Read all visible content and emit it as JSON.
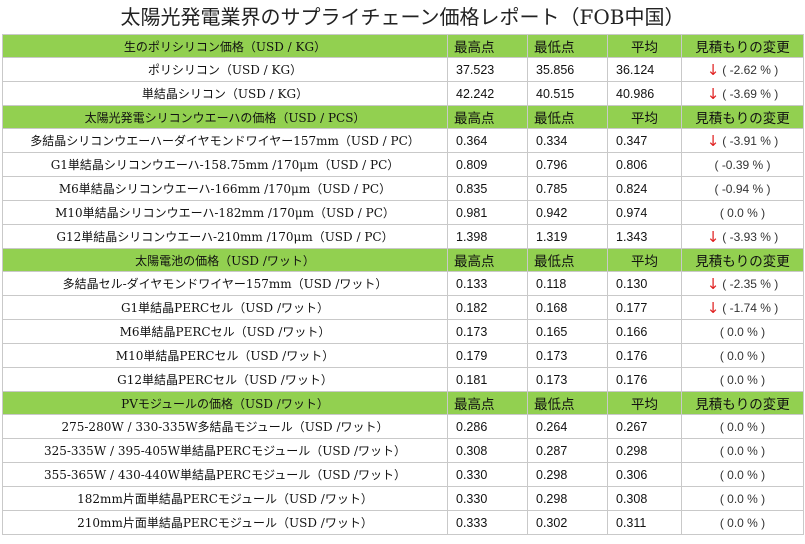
{
  "title": "太陽光発電業界のサプライチェーン価格レポート（FOB中国）",
  "columns": {
    "high": "最高点",
    "low": "最低点",
    "avg": "平均",
    "change": "見積もりの変更"
  },
  "sections": [
    {
      "header": "生のポリシリコン価格（USD / KG）",
      "rows": [
        {
          "name": "ポリシリコン（USD / KG）",
          "high": "37.523",
          "low": "35.856",
          "avg": "36.124",
          "arrow": "down",
          "change": "( -2.62 % )"
        },
        {
          "name": "単結晶シリコン（USD / KG）",
          "high": "42.242",
          "low": "40.515",
          "avg": "40.986",
          "arrow": "down",
          "change": "( -3.69 % )"
        }
      ]
    },
    {
      "header": "太陽光発電シリコンウエーハの価格（USD / PCS）",
      "rows": [
        {
          "name": "多結晶シリコンウエーハーダイヤモンドワイヤー157mm（USD / PC）",
          "high": "0.364",
          "low": "0.334",
          "avg": "0.347",
          "arrow": "down",
          "change": "( -3.91 % )"
        },
        {
          "name": "G1単結晶シリコンウエーハ-158.75mm /170μm（USD / PC）",
          "high": "0.809",
          "low": "0.796",
          "avg": "0.806",
          "arrow": "",
          "change": "( -0.39 % )"
        },
        {
          "name": "M6単結晶シリコンウエーハ-166mm /170μm（USD / PC）",
          "high": "0.835",
          "low": "0.785",
          "avg": "0.824",
          "arrow": "",
          "change": "( -0.94 % )"
        },
        {
          "name": "M10単結晶シリコンウエーハ-182mm /170μm（USD / PC）",
          "high": "0.981",
          "low": "0.942",
          "avg": "0.974",
          "arrow": "",
          "change": "( 0.0 % )"
        },
        {
          "name": "G12単結晶シリコンウエーハ-210mm /170μm（USD / PC）",
          "high": "1.398",
          "low": "1.319",
          "avg": "1.343",
          "arrow": "down",
          "change": "( -3.93 % )"
        }
      ]
    },
    {
      "header": "太陽電池の価格（USD /ワット）",
      "rows": [
        {
          "name": "多結晶セル-ダイヤモンドワイヤー157mm（USD /ワット）",
          "high": "0.133",
          "low": "0.118",
          "avg": "0.130",
          "arrow": "down",
          "change": "( -2.35 % )"
        },
        {
          "name": "G1単結晶PERCセル（USD /ワット）",
          "high": "0.182",
          "low": "0.168",
          "avg": "0.177",
          "arrow": "down",
          "change": "( -1.74 % )"
        },
        {
          "name": "M6単結晶PERCセル（USD /ワット）",
          "high": "0.173",
          "low": "0.165",
          "avg": "0.166",
          "arrow": "",
          "change": "( 0.0 % )"
        },
        {
          "name": "M10単結晶PERCセル（USD /ワット）",
          "high": "0.179",
          "low": "0.173",
          "avg": "0.176",
          "arrow": "",
          "change": "( 0.0 % )"
        },
        {
          "name": "G12単結晶PERCセル（USD /ワット）",
          "high": "0.181",
          "low": "0.173",
          "avg": "0.176",
          "arrow": "",
          "change": "( 0.0 % )"
        }
      ]
    },
    {
      "header": "PVモジュールの価格（USD /ワット）",
      "rows": [
        {
          "name": "275-280W / 330-335W多結晶モジュール（USD /ワット）",
          "high": "0.286",
          "low": "0.264",
          "avg": "0.267",
          "arrow": "",
          "change": "( 0.0 % )"
        },
        {
          "name": "325-335W / 395-405W単結晶PERCモジュール（USD /ワット）",
          "high": "0.308",
          "low": "0.287",
          "avg": "0.298",
          "arrow": "",
          "change": "( 0.0 % )"
        },
        {
          "name": "355-365W / 430-440W単結晶PERCモジュール（USD /ワット）",
          "high": "0.330",
          "low": "0.298",
          "avg": "0.306",
          "arrow": "",
          "change": "( 0.0 % )"
        },
        {
          "name": "182mm片面単結晶PERCモジュール（USD /ワット）",
          "high": "0.330",
          "low": "0.298",
          "avg": "0.308",
          "arrow": "",
          "change": "( 0.0 % )"
        },
        {
          "name": "210mm片面単結晶PERCモジュール（USD /ワット）",
          "high": "0.333",
          "low": "0.302",
          "avg": "0.311",
          "arrow": "",
          "change": "( 0.0 % )"
        }
      ]
    }
  ],
  "colors": {
    "header_bg": "#92d050",
    "down_arrow": "#e02020",
    "grid": "#c9c9c9"
  },
  "icons": {
    "down": "down-arrow-icon"
  }
}
